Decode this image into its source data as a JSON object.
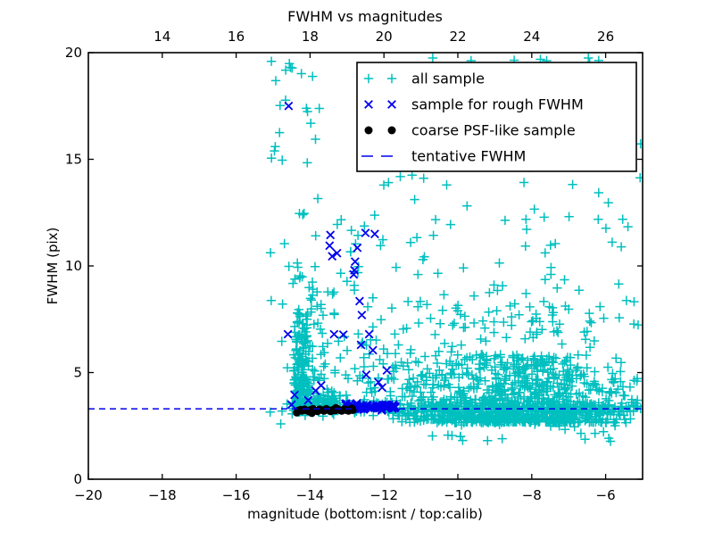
{
  "chart_data": {
    "type": "scatter",
    "title": "FWHM vs magnitudes",
    "xlabel": "magnitude (bottom:isnt / top:calib)",
    "ylabel": "FWHM (pix)",
    "xlim": [
      -20,
      -5
    ],
    "top_xlim": [
      12,
      27
    ],
    "ylim": [
      0,
      20
    ],
    "xticks_bottom": [
      -20,
      -18,
      -16,
      -14,
      -12,
      -10,
      -8,
      -6
    ],
    "xticks_top": [
      14,
      16,
      18,
      20,
      22,
      24,
      26
    ],
    "yticks": [
      0,
      5,
      10,
      15,
      20
    ],
    "grid": false,
    "tentative_fwhm": 3.3,
    "seed": 1337,
    "colors": {
      "all_sample": "#00bfbf",
      "rough_fwhm": "#0000ee",
      "coarse_psf": "#000000",
      "tentative_line": "#0000ee",
      "axis": "#000000",
      "background": "#ffffff"
    },
    "legend": {
      "position": "upper right",
      "entries": [
        {
          "label": "all sample",
          "marker": "plus",
          "color": "#00bfbf"
        },
        {
          "label": "sample for rough FWHM",
          "marker": "x",
          "color": "#0000ee"
        },
        {
          "label": "coarse PSF-like sample",
          "marker": "circle",
          "color": "#000000"
        },
        {
          "label": "tentative FWHM",
          "marker": "dashed-line",
          "color": "#0000ee"
        }
      ]
    },
    "series": [
      {
        "name": "all sample",
        "marker": "plus",
        "color": "#00bfbf",
        "points": [],
        "clusters": [
          {
            "n": 200,
            "x": [
              "u",
              -14.45,
              -14.02
            ],
            "y": [
              "p",
              3.3,
              4.5,
              1.6
            ]
          },
          {
            "n": 45,
            "x": [
              "u",
              -15.1,
              -13.75
            ],
            "y": [
              "u",
              7.8,
              19.8
            ]
          },
          {
            "n": 60,
            "x": [
              "u",
              -14.0,
              -13.3
            ],
            "y": [
              "p",
              3.6,
              6.0,
              2.0
            ]
          },
          {
            "n": 70,
            "x": [
              "u",
              -14.5,
              -13.3
            ],
            "y": [
              "n",
              3.45,
              0.28,
              2.9,
              4.2
            ]
          },
          {
            "n": 70,
            "x": [
              "u",
              -13.3,
              -11.6
            ],
            "y": [
              "p",
              3.9,
              8.5,
              2.0
            ]
          },
          {
            "n": 700,
            "x": [
              "n",
              -8.6,
              1.55,
              -11.6,
              -5.03
            ],
            "y": [
              "p",
              2.65,
              3.2,
              1.8
            ]
          },
          {
            "n": 350,
            "x": [
              "n",
              -8.8,
              1.7,
              -11.8,
              -5.03
            ],
            "y": [
              "p",
              2.8,
              5.5,
              2.5
            ]
          },
          {
            "n": 130,
            "x": [
              "u",
              -12.2,
              -5.05
            ],
            "y": [
              "u",
              7.0,
              19.8
            ]
          },
          {
            "n": 22,
            "x": [
              "u",
              -10.8,
              -5.1
            ],
            "y": [
              "u",
              1.75,
              2.6
            ]
          },
          {
            "n": 260,
            "x": [
              "u",
              -13.6,
              -5.05
            ],
            "y": [
              "n",
              3.35,
              0.17,
              2.95,
              3.85
            ]
          },
          {
            "n": 6,
            "x": [
              "u",
              -15.2,
              -14.6
            ],
            "y": [
              "u",
              2.5,
              6.5
            ]
          }
        ]
      },
      {
        "name": "sample for rough FWHM",
        "marker": "x",
        "color": "#0000ee",
        "points": [
          [
            -14.58,
            17.5
          ],
          [
            -13.45,
            11.45
          ],
          [
            -12.25,
            11.5
          ],
          [
            -12.5,
            11.55
          ],
          [
            -13.47,
            10.95
          ],
          [
            -13.4,
            10.45
          ],
          [
            -13.27,
            10.6
          ],
          [
            -12.72,
            10.85
          ],
          [
            -12.78,
            10.2
          ],
          [
            -12.8,
            9.8
          ],
          [
            -12.82,
            9.6
          ],
          [
            -12.66,
            8.35
          ],
          [
            -12.6,
            7.7
          ],
          [
            -14.6,
            6.8
          ],
          [
            -13.35,
            6.8
          ],
          [
            -13.1,
            6.78
          ],
          [
            -12.4,
            6.8
          ],
          [
            -12.62,
            6.3
          ],
          [
            -12.3,
            6.05
          ],
          [
            -12.48,
            4.9
          ],
          [
            -12.15,
            4.55
          ],
          [
            -11.92,
            5.1
          ],
          [
            -12.05,
            4.3
          ],
          [
            -14.42,
            3.95
          ],
          [
            -14.5,
            3.5
          ],
          [
            -14.05,
            3.7
          ],
          [
            -13.7,
            4.4
          ],
          [
            -13.85,
            4.15
          ],
          [
            -11.75,
            3.5
          ],
          [
            -11.7,
            3.35
          ]
        ],
        "clusters": [
          {
            "n": 65,
            "x": [
              "u",
              -13.05,
              -11.68
            ],
            "y": [
              "n",
              3.4,
              0.09,
              3.15,
              3.65
            ]
          }
        ]
      },
      {
        "name": "coarse PSF-like sample",
        "marker": "circle",
        "color": "#000000",
        "points": [
          [
            -14.32,
            3.22
          ],
          [
            -14.26,
            3.26
          ],
          [
            -14.21,
            3.2
          ],
          [
            -14.15,
            3.28
          ],
          [
            -14.09,
            3.22
          ],
          [
            -14.04,
            3.18
          ],
          [
            -13.98,
            3.26
          ],
          [
            -13.92,
            3.3
          ],
          [
            -13.86,
            3.22
          ],
          [
            -13.8,
            3.18
          ],
          [
            -13.74,
            3.28
          ],
          [
            -13.68,
            3.24
          ],
          [
            -13.62,
            3.2
          ],
          [
            -13.56,
            3.3
          ],
          [
            -13.5,
            3.24
          ],
          [
            -13.44,
            3.18
          ],
          [
            -13.38,
            3.26
          ],
          [
            -13.32,
            3.22
          ],
          [
            -13.26,
            3.3
          ],
          [
            -13.2,
            3.24
          ],
          [
            -13.14,
            3.2
          ],
          [
            -13.08,
            3.28
          ],
          [
            -13.02,
            3.24
          ],
          [
            -12.96,
            3.2
          ],
          [
            -12.9,
            3.28
          ],
          [
            -12.84,
            3.24
          ],
          [
            -14.36,
            3.12
          ],
          [
            -13.95,
            3.1
          ],
          [
            -13.3,
            3.35
          ],
          [
            -12.87,
            3.32
          ]
        ],
        "clusters": []
      },
      {
        "name": "tentative FWHM",
        "type": "hline",
        "marker": "dashed-line",
        "color": "#0000ee",
        "y": 3.3
      }
    ]
  }
}
